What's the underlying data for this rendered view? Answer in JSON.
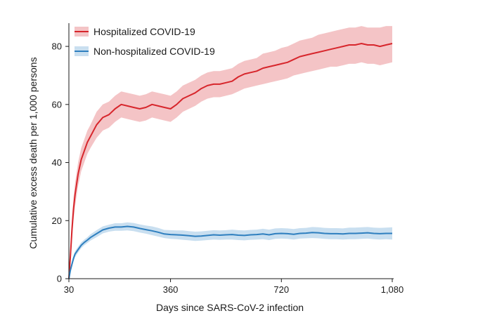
{
  "chart_data": {
    "type": "line",
    "xlabel": "Days since SARS-CoV-2 infection",
    "ylabel": "Cumulative excess death per 1,000 persons",
    "xlim": [
      30,
      1080
    ],
    "ylim": [
      0,
      88
    ],
    "x_ticks": [
      30,
      360,
      720,
      1080
    ],
    "x_tick_labels": [
      "30",
      "360",
      "720",
      "1,080"
    ],
    "y_ticks": [
      0,
      20,
      40,
      60,
      80
    ],
    "y_tick_labels": [
      "0",
      "20",
      "40",
      "60",
      "80"
    ],
    "grid": false,
    "legend_position": "top-left",
    "series": [
      {
        "name": "Hospitalized COVID-19",
        "color": "#d7262c",
        "band_color": "#f4c4c6",
        "x": [
          30,
          35,
          40,
          45,
          50,
          60,
          70,
          80,
          90,
          100,
          120,
          140,
          160,
          180,
          200,
          220,
          240,
          260,
          280,
          300,
          320,
          340,
          360,
          380,
          400,
          420,
          440,
          460,
          480,
          500,
          520,
          540,
          560,
          580,
          600,
          620,
          640,
          660,
          680,
          700,
          720,
          740,
          760,
          780,
          800,
          820,
          840,
          860,
          880,
          900,
          920,
          940,
          960,
          980,
          1000,
          1020,
          1040,
          1060,
          1080
        ],
        "values": [
          0,
          8,
          17,
          24,
          29,
          36,
          41,
          44,
          47,
          49,
          53,
          55.5,
          56.5,
          58.5,
          60,
          59.5,
          59,
          58.5,
          59,
          60,
          59.5,
          59,
          58.5,
          60,
          62,
          63,
          64,
          65.5,
          66.5,
          67,
          67,
          67.5,
          68,
          69.5,
          70.5,
          71,
          71.5,
          72.5,
          73,
          73.5,
          74,
          74.5,
          75.5,
          76.5,
          77,
          77.5,
          78,
          78.5,
          79,
          79.5,
          80,
          80.5,
          80.5,
          81,
          80.5,
          80.5,
          80,
          80.5,
          81
        ],
        "lower": [
          0,
          5,
          13,
          20,
          25,
          32,
          37,
          40,
          43,
          45,
          48.5,
          51,
          52,
          54,
          55.5,
          55,
          54.5,
          54,
          54.5,
          55.5,
          55,
          54.5,
          54,
          55.5,
          57.5,
          58.5,
          59.5,
          61,
          62,
          62.5,
          62.5,
          63,
          63.5,
          64.5,
          65.5,
          66,
          66.5,
          67,
          67.5,
          68,
          68.5,
          69,
          70,
          70.5,
          71,
          71.5,
          72,
          72.5,
          73,
          73,
          73.5,
          74,
          74,
          74.5,
          74,
          74,
          73.5,
          74,
          74.5
        ],
        "upper": [
          0,
          11,
          21,
          28,
          33,
          40,
          45,
          48,
          51,
          53,
          57.5,
          60,
          61,
          63,
          64.5,
          64,
          63.5,
          63,
          63.5,
          64.5,
          64,
          63.5,
          63,
          64.5,
          66.5,
          67.5,
          68.5,
          70,
          71,
          71.5,
          71.5,
          72,
          72.5,
          74,
          75,
          75.5,
          76,
          77.5,
          78,
          78.5,
          79.5,
          80,
          81,
          82,
          82.5,
          83,
          84,
          84.5,
          85,
          85.5,
          86,
          86.5,
          86.5,
          87,
          86.5,
          86.5,
          86.5,
          87,
          87
        ]
      },
      {
        "name": "Non-hospitalized COVID-19",
        "color": "#2e7fbf",
        "band_color": "#c9dff0",
        "x": [
          30,
          35,
          40,
          45,
          50,
          60,
          70,
          80,
          90,
          100,
          120,
          140,
          160,
          180,
          200,
          220,
          240,
          260,
          280,
          300,
          320,
          340,
          360,
          380,
          400,
          420,
          440,
          460,
          480,
          500,
          520,
          540,
          560,
          580,
          600,
          620,
          640,
          660,
          680,
          700,
          720,
          740,
          760,
          780,
          800,
          820,
          840,
          860,
          880,
          900,
          920,
          940,
          960,
          980,
          1000,
          1020,
          1040,
          1060,
          1080
        ],
        "values": [
          0,
          3,
          5,
          7,
          8.5,
          10,
          11.5,
          12.5,
          13.3,
          14.2,
          15.5,
          16.8,
          17.4,
          17.8,
          17.8,
          18.0,
          17.8,
          17.3,
          16.9,
          16.5,
          16.0,
          15.4,
          15.2,
          15.1,
          15.0,
          14.8,
          14.6,
          14.7,
          14.9,
          15.1,
          15.0,
          15.1,
          15.2,
          15.0,
          14.9,
          15.1,
          15.2,
          15.4,
          15.1,
          15.5,
          15.6,
          15.5,
          15.3,
          15.6,
          15.7,
          15.9,
          15.8,
          15.6,
          15.5,
          15.5,
          15.4,
          15.6,
          15.6,
          15.7,
          15.8,
          15.6,
          15.5,
          15.6,
          15.6
        ],
        "lower": [
          0,
          2,
          4,
          6,
          7.5,
          9,
          10.5,
          11.5,
          12.3,
          13.1,
          14.3,
          15.6,
          16.2,
          16.5,
          16.5,
          16.6,
          16.4,
          15.9,
          15.5,
          15.0,
          14.5,
          14.0,
          13.7,
          13.6,
          13.4,
          13.2,
          13.0,
          13.1,
          13.3,
          13.5,
          13.4,
          13.5,
          13.5,
          13.3,
          13.2,
          13.4,
          13.5,
          13.6,
          13.3,
          13.7,
          13.8,
          13.7,
          13.5,
          13.8,
          13.9,
          14.0,
          13.9,
          13.7,
          13.6,
          13.6,
          13.5,
          13.6,
          13.6,
          13.7,
          13.8,
          13.6,
          13.5,
          13.6,
          13.5
        ],
        "upper": [
          0,
          4,
          6,
          8,
          9.5,
          11,
          12.5,
          13.5,
          14.3,
          15.3,
          16.7,
          18.0,
          18.6,
          19.1,
          19.1,
          19.4,
          19.2,
          18.7,
          18.3,
          18.0,
          17.5,
          16.8,
          16.7,
          16.6,
          16.6,
          16.4,
          16.2,
          16.3,
          16.5,
          16.7,
          16.6,
          16.7,
          16.9,
          16.7,
          16.6,
          16.8,
          16.9,
          17.2,
          16.9,
          17.3,
          17.4,
          17.3,
          17.1,
          17.4,
          17.5,
          17.8,
          17.7,
          17.5,
          17.4,
          17.4,
          17.3,
          17.6,
          17.6,
          17.7,
          17.8,
          17.6,
          17.5,
          17.6,
          17.7
        ]
      }
    ]
  }
}
